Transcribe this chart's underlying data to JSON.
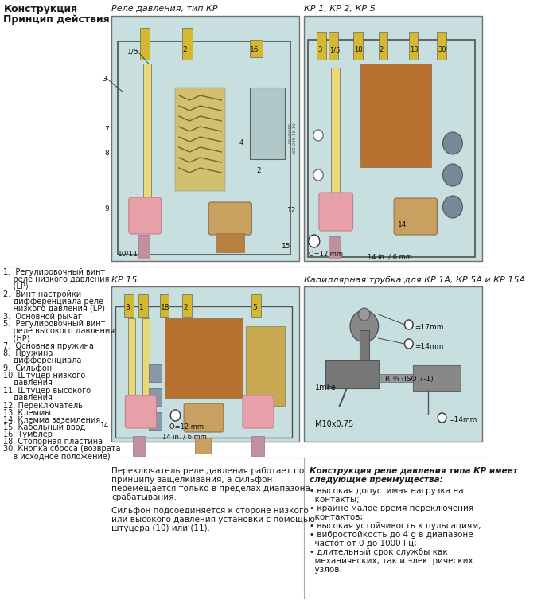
{
  "title_left_line1": "Конструкция",
  "title_left_line2": "Принцип действия",
  "title_top_left": "Реле давления, тип КР",
  "title_top_right": "КР 1, КР 2, КР 5",
  "title_mid_left": "КР 15",
  "title_mid_right": "Капиллярная трубка для КР 1А, КР 5А и КР 15А",
  "legend_items": [
    [
      "1.",
      "Регулировочный винт реле низкого давления (LP)"
    ],
    [
      "2.",
      "Винт настройки дифференциала реле низкого давления (LP)"
    ],
    [
      "3.",
      "Основной рычаг"
    ],
    [
      "5.",
      "Регулировочный винт реле высокого давления (HP)"
    ],
    [
      "7.",
      "Основная пружина"
    ],
    [
      "8.",
      "Пружина дифференциала"
    ],
    [
      "9.",
      "Сильфон"
    ],
    [
      "10.",
      "Штуцер низкого давления"
    ],
    [
      "11.",
      "Штуцер высокого давления"
    ],
    [
      "12.",
      "Переключатель"
    ],
    [
      "13.",
      "Клеммы"
    ],
    [
      "14.",
      "Клемма заземления"
    ],
    [
      "15.",
      "Кабельный ввод"
    ],
    [
      "16.",
      "Тумблер"
    ],
    [
      "18.",
      "Стопорная пластина"
    ],
    [
      "30.",
      "Кнопка сброса (возврата в исходное положение)"
    ]
  ],
  "bottom_left_para1": "Переключатель реле давления работает по принципу защелкивания, а сильфон перемещается только в пределах диапазона срабатывания.",
  "bottom_left_para2": "Сильфон подсоединяется к стороне низкого или высокого давления установки с помощью штуцера (10) или (11).",
  "bottom_right_title": "Конструкция реле давления типа КР имеет следующие преимущества:",
  "bottom_right_bullets": [
    "высокая допустимая нагрузка на контакты;",
    "крайне малое время переключения контактов;",
    "высокая устойчивость к пульсациям;",
    "вибростойкость до 4 g в диапазоне частот от 0 до 1000 Гц;",
    "длительный срок службы как механических, так и электрических узлов."
  ],
  "bg_color": "#ffffff",
  "box_bg": "#c8dfe0",
  "box_border": "#707070",
  "text_col": "#1a1a1a",
  "yellow_col": "#d4b830",
  "yellow_light": "#e8d878",
  "pink_col": "#e8a0a8",
  "brown_col": "#b87030",
  "tan_col": "#c8a060",
  "gray_col": "#888888",
  "blue_gray": "#8898a8"
}
